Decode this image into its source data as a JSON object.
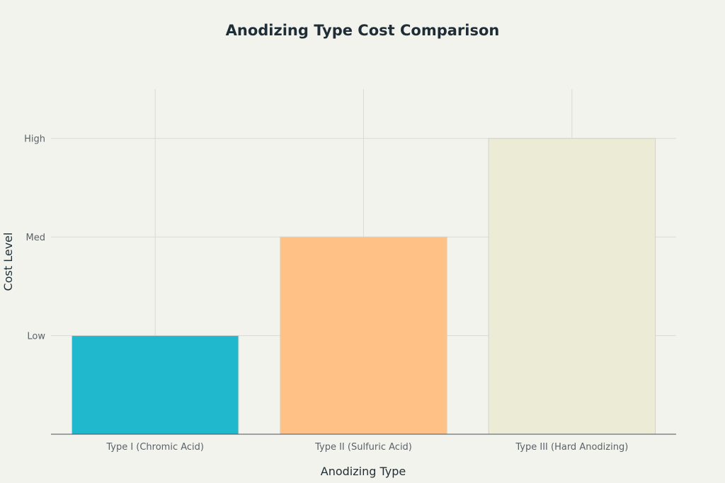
{
  "chart_data": {
    "type": "bar",
    "title": "Anodizing Type Cost Comparison",
    "xlabel": "Anodizing Type",
    "ylabel": "Cost Level",
    "categories": [
      "Type I (Chromic Acid)",
      "Type II (Sulfuric Acid)",
      "Type III (Hard Anodizing)"
    ],
    "values": [
      1,
      2,
      3
    ],
    "ylim": [
      0,
      3.5
    ],
    "y_ticks": [
      {
        "value": 1,
        "label": "Low"
      },
      {
        "value": 2,
        "label": "Med"
      },
      {
        "value": 3,
        "label": "High"
      }
    ],
    "colors": [
      "#1fb8cd",
      "#ffc185",
      "#ecebd5"
    ],
    "grid": true,
    "legend": "none"
  }
}
